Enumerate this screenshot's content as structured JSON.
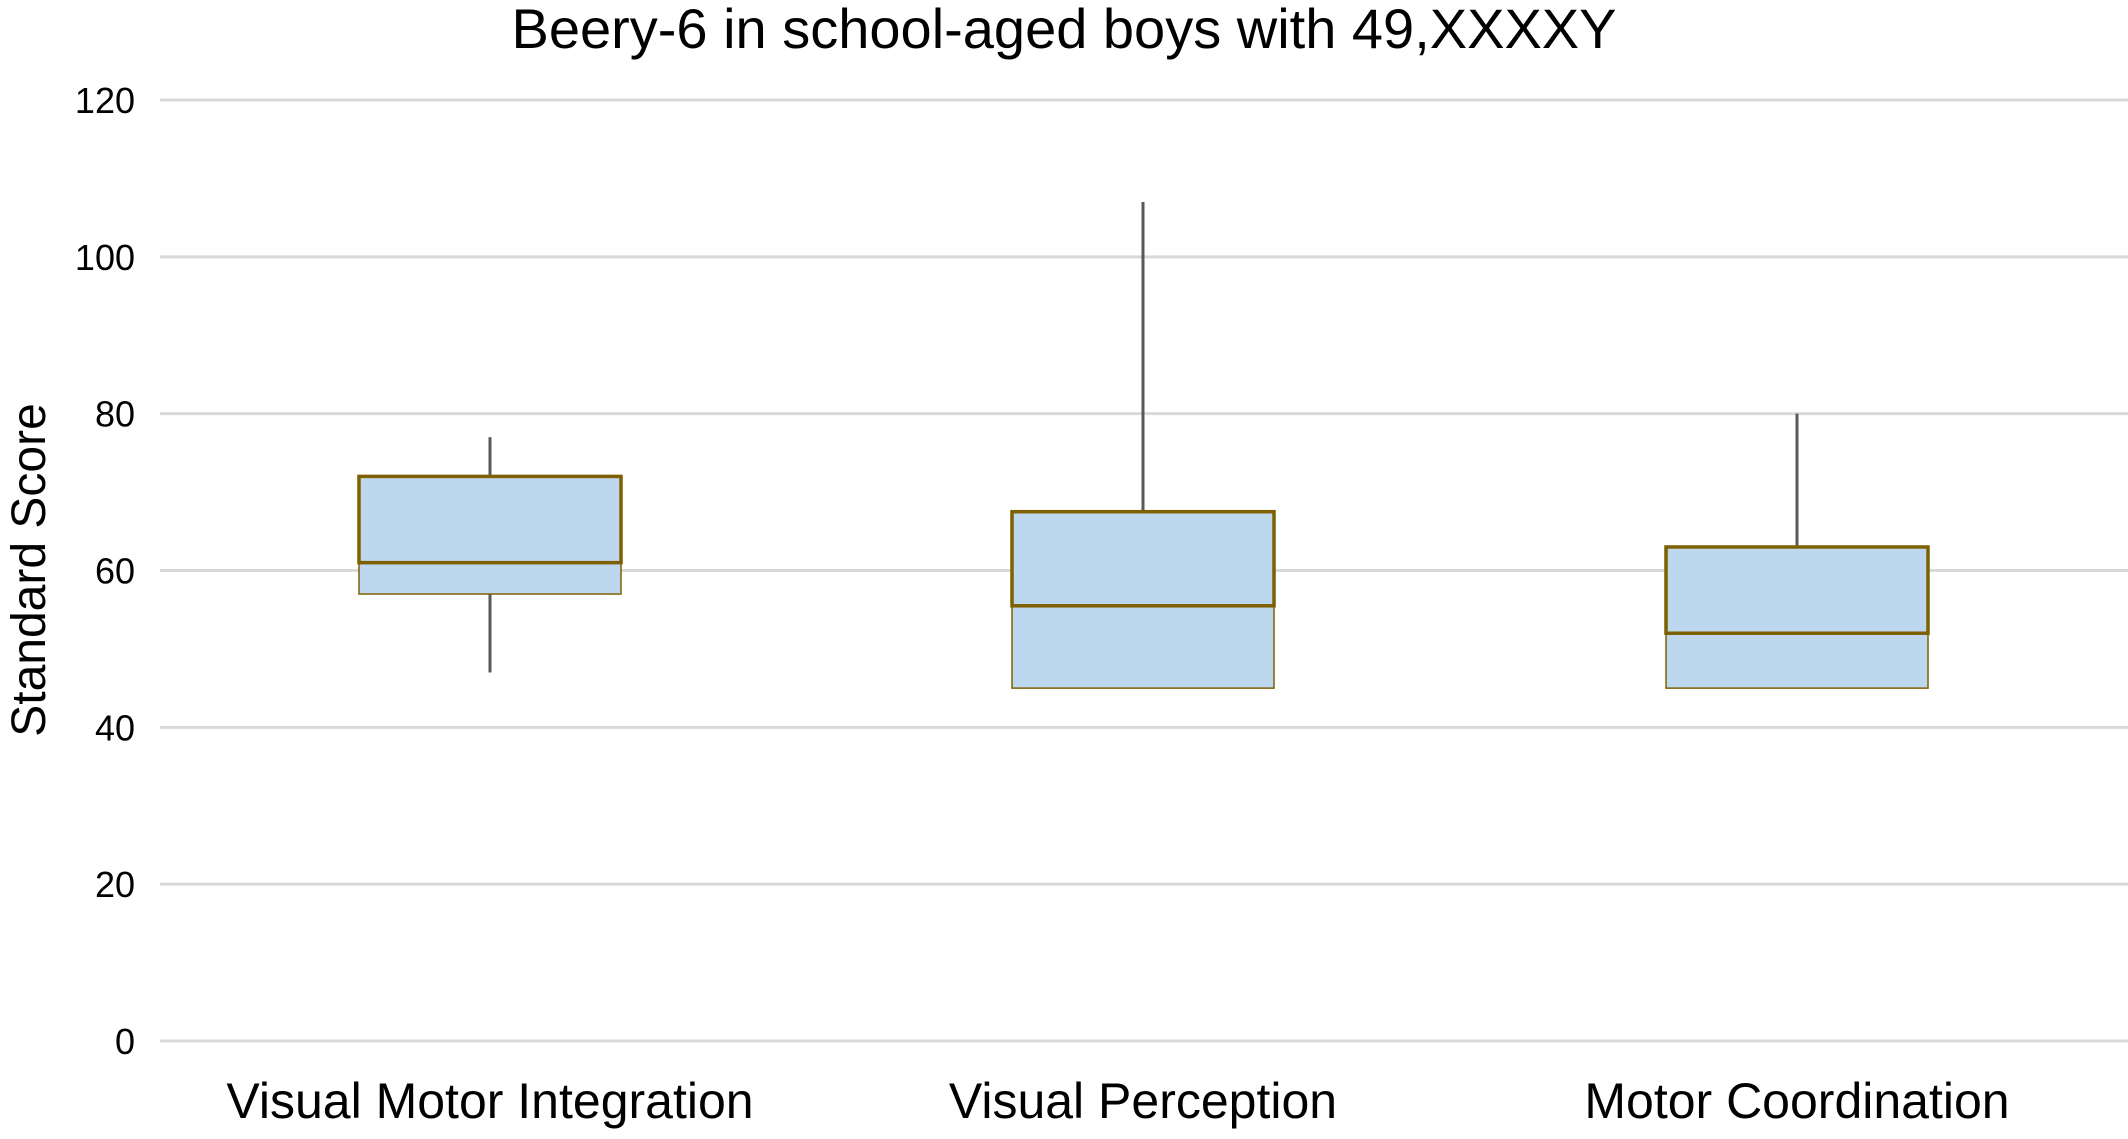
{
  "chart_data": {
    "type": "boxplot",
    "title": "Beery-6 in school-aged boys with 49,XXXXY",
    "xlabel": "",
    "ylabel": "Standard Score",
    "ylim": [
      0,
      120
    ],
    "yticks": [
      "0",
      "20",
      "40",
      "60",
      "80",
      "100",
      "120"
    ],
    "grid": true,
    "legend": "none",
    "categories": [
      "Visual Motor Integration",
      "Visual Perception",
      "Motor Coordination"
    ],
    "boxes": [
      {
        "category": "Visual Motor Integration",
        "min": 47,
        "q1": 57,
        "median": 61,
        "q3": 72,
        "max": 77
      },
      {
        "category": "Visual Perception",
        "min": 45,
        "q1": 45,
        "median": 55.5,
        "q3": 67.5,
        "max": 107
      },
      {
        "category": "Motor Coordination",
        "min": 45,
        "q1": 45,
        "median": 52,
        "q3": 63,
        "max": 80
      }
    ],
    "colors": {
      "box_fill": "#bdd7ee",
      "box_border": "#7f6000",
      "whisker": "#595959",
      "grid": "#d9d9d9"
    }
  }
}
